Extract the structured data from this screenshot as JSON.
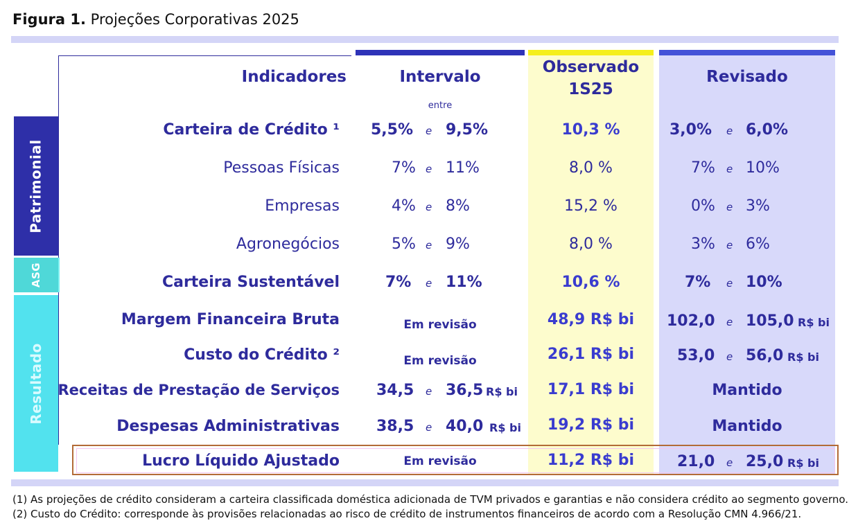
{
  "title": {
    "prefix": "Figura 1.",
    "text": "Projeções Corporativas 2025"
  },
  "headers": {
    "indicadores": "Indicadores",
    "intervalo": "Intervalo",
    "entre": "entre",
    "observado_1": "Observado",
    "observado_2": "1S25",
    "revisado": "Revisado"
  },
  "side_labels": {
    "patrimonial": "Patrimonial",
    "asg": "ASG",
    "resultado": "Resultado"
  },
  "rows": [
    {
      "label": "Carteira de Crédito ¹",
      "int_a": "5,5%",
      "int_e": "e",
      "int_b": "9,5%",
      "obs": "10,3 %",
      "rev_a": "3,0%",
      "rev_e": "e",
      "rev_b": "6,0%"
    },
    {
      "label": "Pessoas Físicas",
      "int_a": "7%",
      "int_e": "e",
      "int_b": "11%",
      "obs": "8,0 %",
      "rev_a": "7%",
      "rev_e": "e",
      "rev_b": "10%"
    },
    {
      "label": "Empresas",
      "int_a": "4%",
      "int_e": "e",
      "int_b": "8%",
      "obs": "15,2 %",
      "rev_a": "0%",
      "rev_e": "e",
      "rev_b": "3%"
    },
    {
      "label": "Agronegócios",
      "int_a": "5%",
      "int_e": "e",
      "int_b": "9%",
      "obs": "8,0 %",
      "rev_a": "3%",
      "rev_e": "e",
      "rev_b": "6%"
    },
    {
      "label": "Carteira Sustentável",
      "int_a": "7%",
      "int_e": "e",
      "int_b": "11%",
      "obs": "10,6 %",
      "rev_a": "7%",
      "rev_e": "e",
      "rev_b": "10%"
    },
    {
      "label": "Margem Financeira Bruta",
      "int": "Em revisão",
      "obs": "48,9 R$ bi",
      "rev_a": "102,0",
      "rev_e": "e",
      "rev_b": "105,0",
      "rev_unit": "R$ bi"
    },
    {
      "label": "Custo do Crédito ²",
      "int": "Em revisão",
      "obs": "26,1 R$ bi",
      "rev_a": "53,0",
      "rev_e": "e",
      "rev_b": "56,0",
      "rev_unit": "R$ bi"
    },
    {
      "label": "Receitas de Prestação de Serviços",
      "int_a": "34,5",
      "int_e": "e",
      "int_b": "36,5",
      "int_unit": "R$ bi",
      "obs": "17,1 R$ bi",
      "rev": "Mantido"
    },
    {
      "label": "Despesas Administrativas",
      "int_a": "38,5",
      "int_e": "e",
      "int_b": "40,0",
      "int_unit": "R$ bi",
      "obs": "19,2 R$ bi",
      "rev": "Mantido"
    },
    {
      "label": "Lucro Líquido Ajustado",
      "int": "Em revisão",
      "obs": "11,2 R$ bi",
      "rev_a": "21,0",
      "rev_e": "e",
      "rev_b": "25,0",
      "rev_unit": "R$ bi"
    }
  ],
  "footnotes": [
    "(1) As projeções de crédito consideram a carteira classificada doméstica adicionada de TVM privados e garantias e não considera crédito ao segmento governo.",
    "(2) Custo do Crédito: corresponde às provisões relacionadas ao risco de crédito de instrumentos financeiros de acordo com a Resolução CMN 4.966/21."
  ],
  "colors": {
    "navy": "#2e2b9c",
    "obs_bg": "#fdfccd",
    "rev_bg": "#d8d9fa",
    "highlight_border": "#b36b37"
  }
}
